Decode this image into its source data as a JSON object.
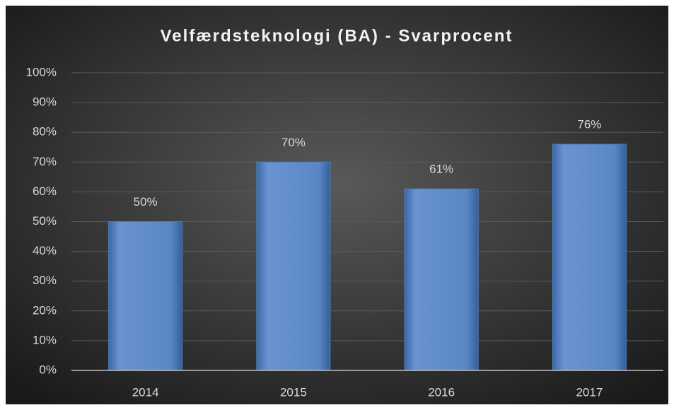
{
  "chart_data": {
    "type": "bar",
    "title": "Velfærdsteknologi (BA) - Svarprocent",
    "categories": [
      "2014",
      "2015",
      "2016",
      "2017"
    ],
    "values": [
      50,
      70,
      61,
      76
    ],
    "value_labels": [
      "50%",
      "70%",
      "61%",
      "76%"
    ],
    "color": "#4f81bd",
    "ylim": [
      0,
      100
    ],
    "yticks": [
      {
        "value": 0,
        "label": "0%"
      },
      {
        "value": 10,
        "label": "10%"
      },
      {
        "value": 20,
        "label": "20%"
      },
      {
        "value": 30,
        "label": "30%"
      },
      {
        "value": 40,
        "label": "40%"
      },
      {
        "value": 50,
        "label": "50%"
      },
      {
        "value": 60,
        "label": "60%"
      },
      {
        "value": 70,
        "label": "70%"
      },
      {
        "value": 80,
        "label": "80%"
      },
      {
        "value": 90,
        "label": "90%"
      },
      {
        "value": 100,
        "label": "100%"
      }
    ],
    "grid": true
  }
}
